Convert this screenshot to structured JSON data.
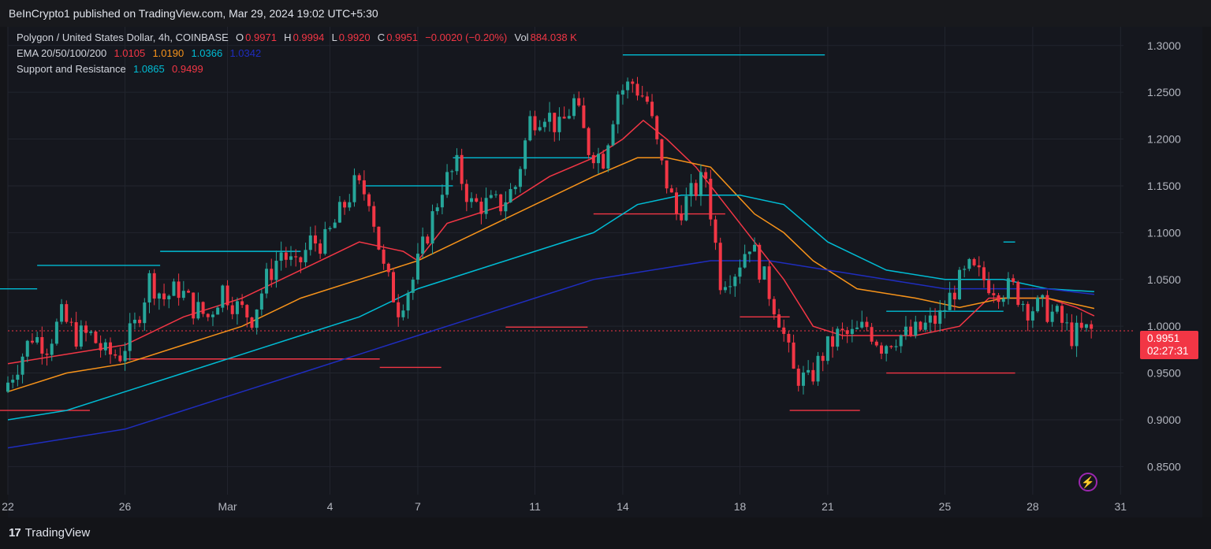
{
  "header": {
    "published": "BeInCrypto1 published on TradingView.com, Mar 29, 2024 19:02 UTC+5:30"
  },
  "legend": {
    "symbol": "Polygon / United States Dollar, 4h, COINBASE",
    "o_label": "O",
    "o_value": "0.9971",
    "h_label": "H",
    "h_value": "0.9994",
    "l_label": "L",
    "l_value": "0.9920",
    "c_label": "C",
    "c_value": "0.9951",
    "change": "−0.0020 (−0.20%)",
    "vol_label": "Vol",
    "vol_value": "884.038 K",
    "ema_label": "EMA 20/50/100/200",
    "ema20": "1.0105",
    "ema50": "1.0190",
    "ema100": "1.0366",
    "ema200": "1.0342",
    "sr_label": "Support and Resistance",
    "sr_resistance": "1.0865",
    "sr_support": "0.9499"
  },
  "price_tag": {
    "value": "0.9951",
    "countdown": "02:27:31"
  },
  "footer": {
    "logo": "17",
    "brand": "TradingView"
  },
  "colors": {
    "up": "#26a69a",
    "down": "#f23645",
    "ema20": "#f23645",
    "ema50": "#f7931a",
    "ema100": "#00bcd4",
    "ema200": "#1f2dbf",
    "resistance": "#00bcd4",
    "support": "#f23645"
  },
  "chart_data": {
    "type": "line",
    "title": "Polygon / United States Dollar, 4h, COINBASE",
    "ylim": [
      0.82,
      1.32
    ],
    "y_ticks": [
      0.85,
      0.9,
      0.95,
      1.0,
      1.05,
      1.1,
      1.15,
      1.2,
      1.25,
      1.3
    ],
    "y_tick_labels": [
      "0.8500",
      "0.9000",
      "0.9500",
      "1.0000",
      "1.0500",
      "1.1000",
      "1.1500",
      "1.2000",
      "1.2500",
      "1.3000"
    ],
    "x_labels": [
      {
        "day": 22,
        "label": "22"
      },
      {
        "day": 26,
        "label": "26"
      },
      {
        "day": 29.5,
        "label": "Mar"
      },
      {
        "day": 33,
        "label": "4"
      },
      {
        "day": 36,
        "label": "7"
      },
      {
        "day": 40,
        "label": "11"
      },
      {
        "day": 43,
        "label": "14"
      },
      {
        "day": 47,
        "label": "18"
      },
      {
        "day": 50,
        "label": "21"
      },
      {
        "day": 54,
        "label": "25"
      },
      {
        "day": 57,
        "label": "28"
      },
      {
        "day": 60,
        "label": "31"
      }
    ],
    "xlim": [
      22,
      60.1
    ],
    "price_path": [
      [
        22.0,
        0.93
      ],
      [
        22.5,
        0.96
      ],
      [
        23.0,
        0.99
      ],
      [
        23.5,
        0.98
      ],
      [
        24.0,
        1.01
      ],
      [
        24.5,
        0.99
      ],
      [
        25.0,
        0.99
      ],
      [
        25.5,
        0.97
      ],
      [
        26.0,
        0.97
      ],
      [
        26.5,
        1.0
      ],
      [
        27.0,
        1.05
      ],
      [
        27.5,
        1.03
      ],
      [
        28.0,
        1.04
      ],
      [
        28.5,
        1.02
      ],
      [
        29.0,
        1.01
      ],
      [
        29.5,
        1.04
      ],
      [
        30.0,
        1.02
      ],
      [
        30.5,
        1.01
      ],
      [
        31.0,
        1.05
      ],
      [
        31.5,
        1.08
      ],
      [
        32.0,
        1.06
      ],
      [
        32.5,
        1.09
      ],
      [
        33.0,
        1.09
      ],
      [
        33.5,
        1.12
      ],
      [
        34.0,
        1.15
      ],
      [
        34.5,
        1.14
      ],
      [
        35.0,
        1.06
      ],
      [
        35.5,
        1.02
      ],
      [
        36.0,
        1.05
      ],
      [
        36.5,
        1.1
      ],
      [
        37.0,
        1.15
      ],
      [
        37.5,
        1.17
      ],
      [
        38.0,
        1.13
      ],
      [
        38.5,
        1.13
      ],
      [
        39.0,
        1.13
      ],
      [
        39.5,
        1.15
      ],
      [
        40.0,
        1.22
      ],
      [
        40.5,
        1.23
      ],
      [
        41.0,
        1.21
      ],
      [
        41.5,
        1.24
      ],
      [
        42.0,
        1.19
      ],
      [
        42.5,
        1.18
      ],
      [
        43.0,
        1.25
      ],
      [
        43.5,
        1.26
      ],
      [
        44.0,
        1.24
      ],
      [
        44.5,
        1.17
      ],
      [
        45.0,
        1.12
      ],
      [
        45.5,
        1.14
      ],
      [
        46.0,
        1.16
      ],
      [
        46.5,
        1.05
      ],
      [
        47.0,
        1.06
      ],
      [
        47.5,
        1.09
      ],
      [
        48.0,
        1.05
      ],
      [
        48.5,
        1.01
      ],
      [
        49.0,
        0.95
      ],
      [
        49.5,
        0.94
      ],
      [
        50.0,
        0.97
      ],
      [
        50.5,
        0.99
      ],
      [
        51.0,
        0.99
      ],
      [
        51.5,
        1.0
      ],
      [
        52.0,
        0.98
      ],
      [
        52.5,
        0.99
      ],
      [
        53.0,
        0.99
      ],
      [
        53.5,
        1.0
      ],
      [
        54.0,
        1.01
      ],
      [
        54.5,
        1.04
      ],
      [
        55.0,
        1.06
      ],
      [
        55.5,
        1.05
      ],
      [
        56.0,
        1.04
      ],
      [
        56.5,
        1.04
      ],
      [
        57.0,
        1.02
      ],
      [
        57.5,
        1.02
      ],
      [
        58.0,
        1.01
      ],
      [
        58.5,
        0.99
      ],
      [
        59.0,
        0.995
      ]
    ],
    "series": [
      {
        "name": "EMA 20",
        "values": [
          [
            22.0,
            0.96
          ],
          [
            24.0,
            0.97
          ],
          [
            26.0,
            0.98
          ],
          [
            28.0,
            1.01
          ],
          [
            30.0,
            1.03
          ],
          [
            32.0,
            1.06
          ],
          [
            34.0,
            1.09
          ],
          [
            35.5,
            1.08
          ],
          [
            36.0,
            1.07
          ],
          [
            37.0,
            1.11
          ],
          [
            39.0,
            1.13
          ],
          [
            40.5,
            1.16
          ],
          [
            42.0,
            1.18
          ],
          [
            43.0,
            1.2
          ],
          [
            43.7,
            1.22
          ],
          [
            44.5,
            1.2
          ],
          [
            45.5,
            1.17
          ],
          [
            46.5,
            1.13
          ],
          [
            47.5,
            1.09
          ],
          [
            48.5,
            1.05
          ],
          [
            49.5,
            1.0
          ],
          [
            50.5,
            0.99
          ],
          [
            51.5,
            0.99
          ],
          [
            53.0,
            0.99
          ],
          [
            54.5,
            1.0
          ],
          [
            55.5,
            1.03
          ],
          [
            56.5,
            1.03
          ],
          [
            57.5,
            1.03
          ],
          [
            58.5,
            1.02
          ],
          [
            59.1,
            1.011
          ]
        ]
      },
      {
        "name": "EMA 50",
        "values": [
          [
            22.0,
            0.93
          ],
          [
            24.0,
            0.95
          ],
          [
            26.0,
            0.96
          ],
          [
            28.0,
            0.98
          ],
          [
            30.0,
            1.0
          ],
          [
            32.0,
            1.03
          ],
          [
            34.0,
            1.05
          ],
          [
            36.0,
            1.07
          ],
          [
            38.0,
            1.1
          ],
          [
            40.0,
            1.13
          ],
          [
            42.0,
            1.16
          ],
          [
            43.5,
            1.18
          ],
          [
            44.5,
            1.18
          ],
          [
            46.0,
            1.17
          ],
          [
            47.5,
            1.12
          ],
          [
            48.5,
            1.1
          ],
          [
            49.5,
            1.07
          ],
          [
            51.0,
            1.04
          ],
          [
            53.0,
            1.03
          ],
          [
            54.5,
            1.02
          ],
          [
            56.0,
            1.03
          ],
          [
            57.5,
            1.03
          ],
          [
            59.1,
            1.019
          ]
        ]
      },
      {
        "name": "EMA 100",
        "values": [
          [
            22.0,
            0.9
          ],
          [
            24.0,
            0.91
          ],
          [
            26.0,
            0.93
          ],
          [
            28.0,
            0.95
          ],
          [
            30.0,
            0.97
          ],
          [
            32.0,
            0.99
          ],
          [
            34.0,
            1.01
          ],
          [
            36.0,
            1.04
          ],
          [
            38.0,
            1.06
          ],
          [
            40.0,
            1.08
          ],
          [
            42.0,
            1.1
          ],
          [
            43.5,
            1.13
          ],
          [
            45.0,
            1.14
          ],
          [
            47.0,
            1.14
          ],
          [
            48.5,
            1.13
          ],
          [
            50.0,
            1.09
          ],
          [
            52.0,
            1.06
          ],
          [
            54.0,
            1.05
          ],
          [
            56.0,
            1.05
          ],
          [
            57.5,
            1.04
          ],
          [
            59.1,
            1.037
          ]
        ]
      },
      {
        "name": "EMA 200",
        "values": [
          [
            22.0,
            0.87
          ],
          [
            24.0,
            0.88
          ],
          [
            26.0,
            0.89
          ],
          [
            28.0,
            0.91
          ],
          [
            30.0,
            0.93
          ],
          [
            32.0,
            0.95
          ],
          [
            34.0,
            0.97
          ],
          [
            36.0,
            0.99
          ],
          [
            38.0,
            1.01
          ],
          [
            40.0,
            1.03
          ],
          [
            42.0,
            1.05
          ],
          [
            44.0,
            1.06
          ],
          [
            46.0,
            1.07
          ],
          [
            48.0,
            1.07
          ],
          [
            50.0,
            1.06
          ],
          [
            52.0,
            1.05
          ],
          [
            54.0,
            1.04
          ],
          [
            56.0,
            1.04
          ],
          [
            57.5,
            1.04
          ],
          [
            59.1,
            1.034
          ]
        ]
      }
    ],
    "resistance_levels": [
      {
        "y": 1.04,
        "x1": 21.6,
        "x2": 23.0
      },
      {
        "y": 1.065,
        "x1": 23.0,
        "x2": 27.2
      },
      {
        "y": 1.08,
        "x1": 27.2,
        "x2": 32.0
      },
      {
        "y": 1.15,
        "x1": 34.2,
        "x2": 37.2
      },
      {
        "y": 1.18,
        "x1": 37.2,
        "x2": 42.0
      },
      {
        "y": 1.29,
        "x1": 43.0,
        "x2": 49.9
      },
      {
        "y": 1.016,
        "x1": 52.0,
        "x2": 56.0
      },
      {
        "y": 1.09,
        "x1": 56.0,
        "x2": 56.4
      }
    ],
    "support_levels": [
      {
        "y": 0.91,
        "x1": 21.6,
        "x2": 24.8
      },
      {
        "y": 0.965,
        "x1": 26.0,
        "x2": 34.7
      },
      {
        "y": 0.956,
        "x1": 34.7,
        "x2": 36.8
      },
      {
        "y": 0.999,
        "x1": 39.0,
        "x2": 41.8
      },
      {
        "y": 1.12,
        "x1": 42.0,
        "x2": 46.5
      },
      {
        "y": 1.01,
        "x1": 47.0,
        "x2": 48.7
      },
      {
        "y": 0.91,
        "x1": 48.7,
        "x2": 51.1
      },
      {
        "y": 0.95,
        "x1": 52.0,
        "x2": 56.4
      }
    ]
  }
}
